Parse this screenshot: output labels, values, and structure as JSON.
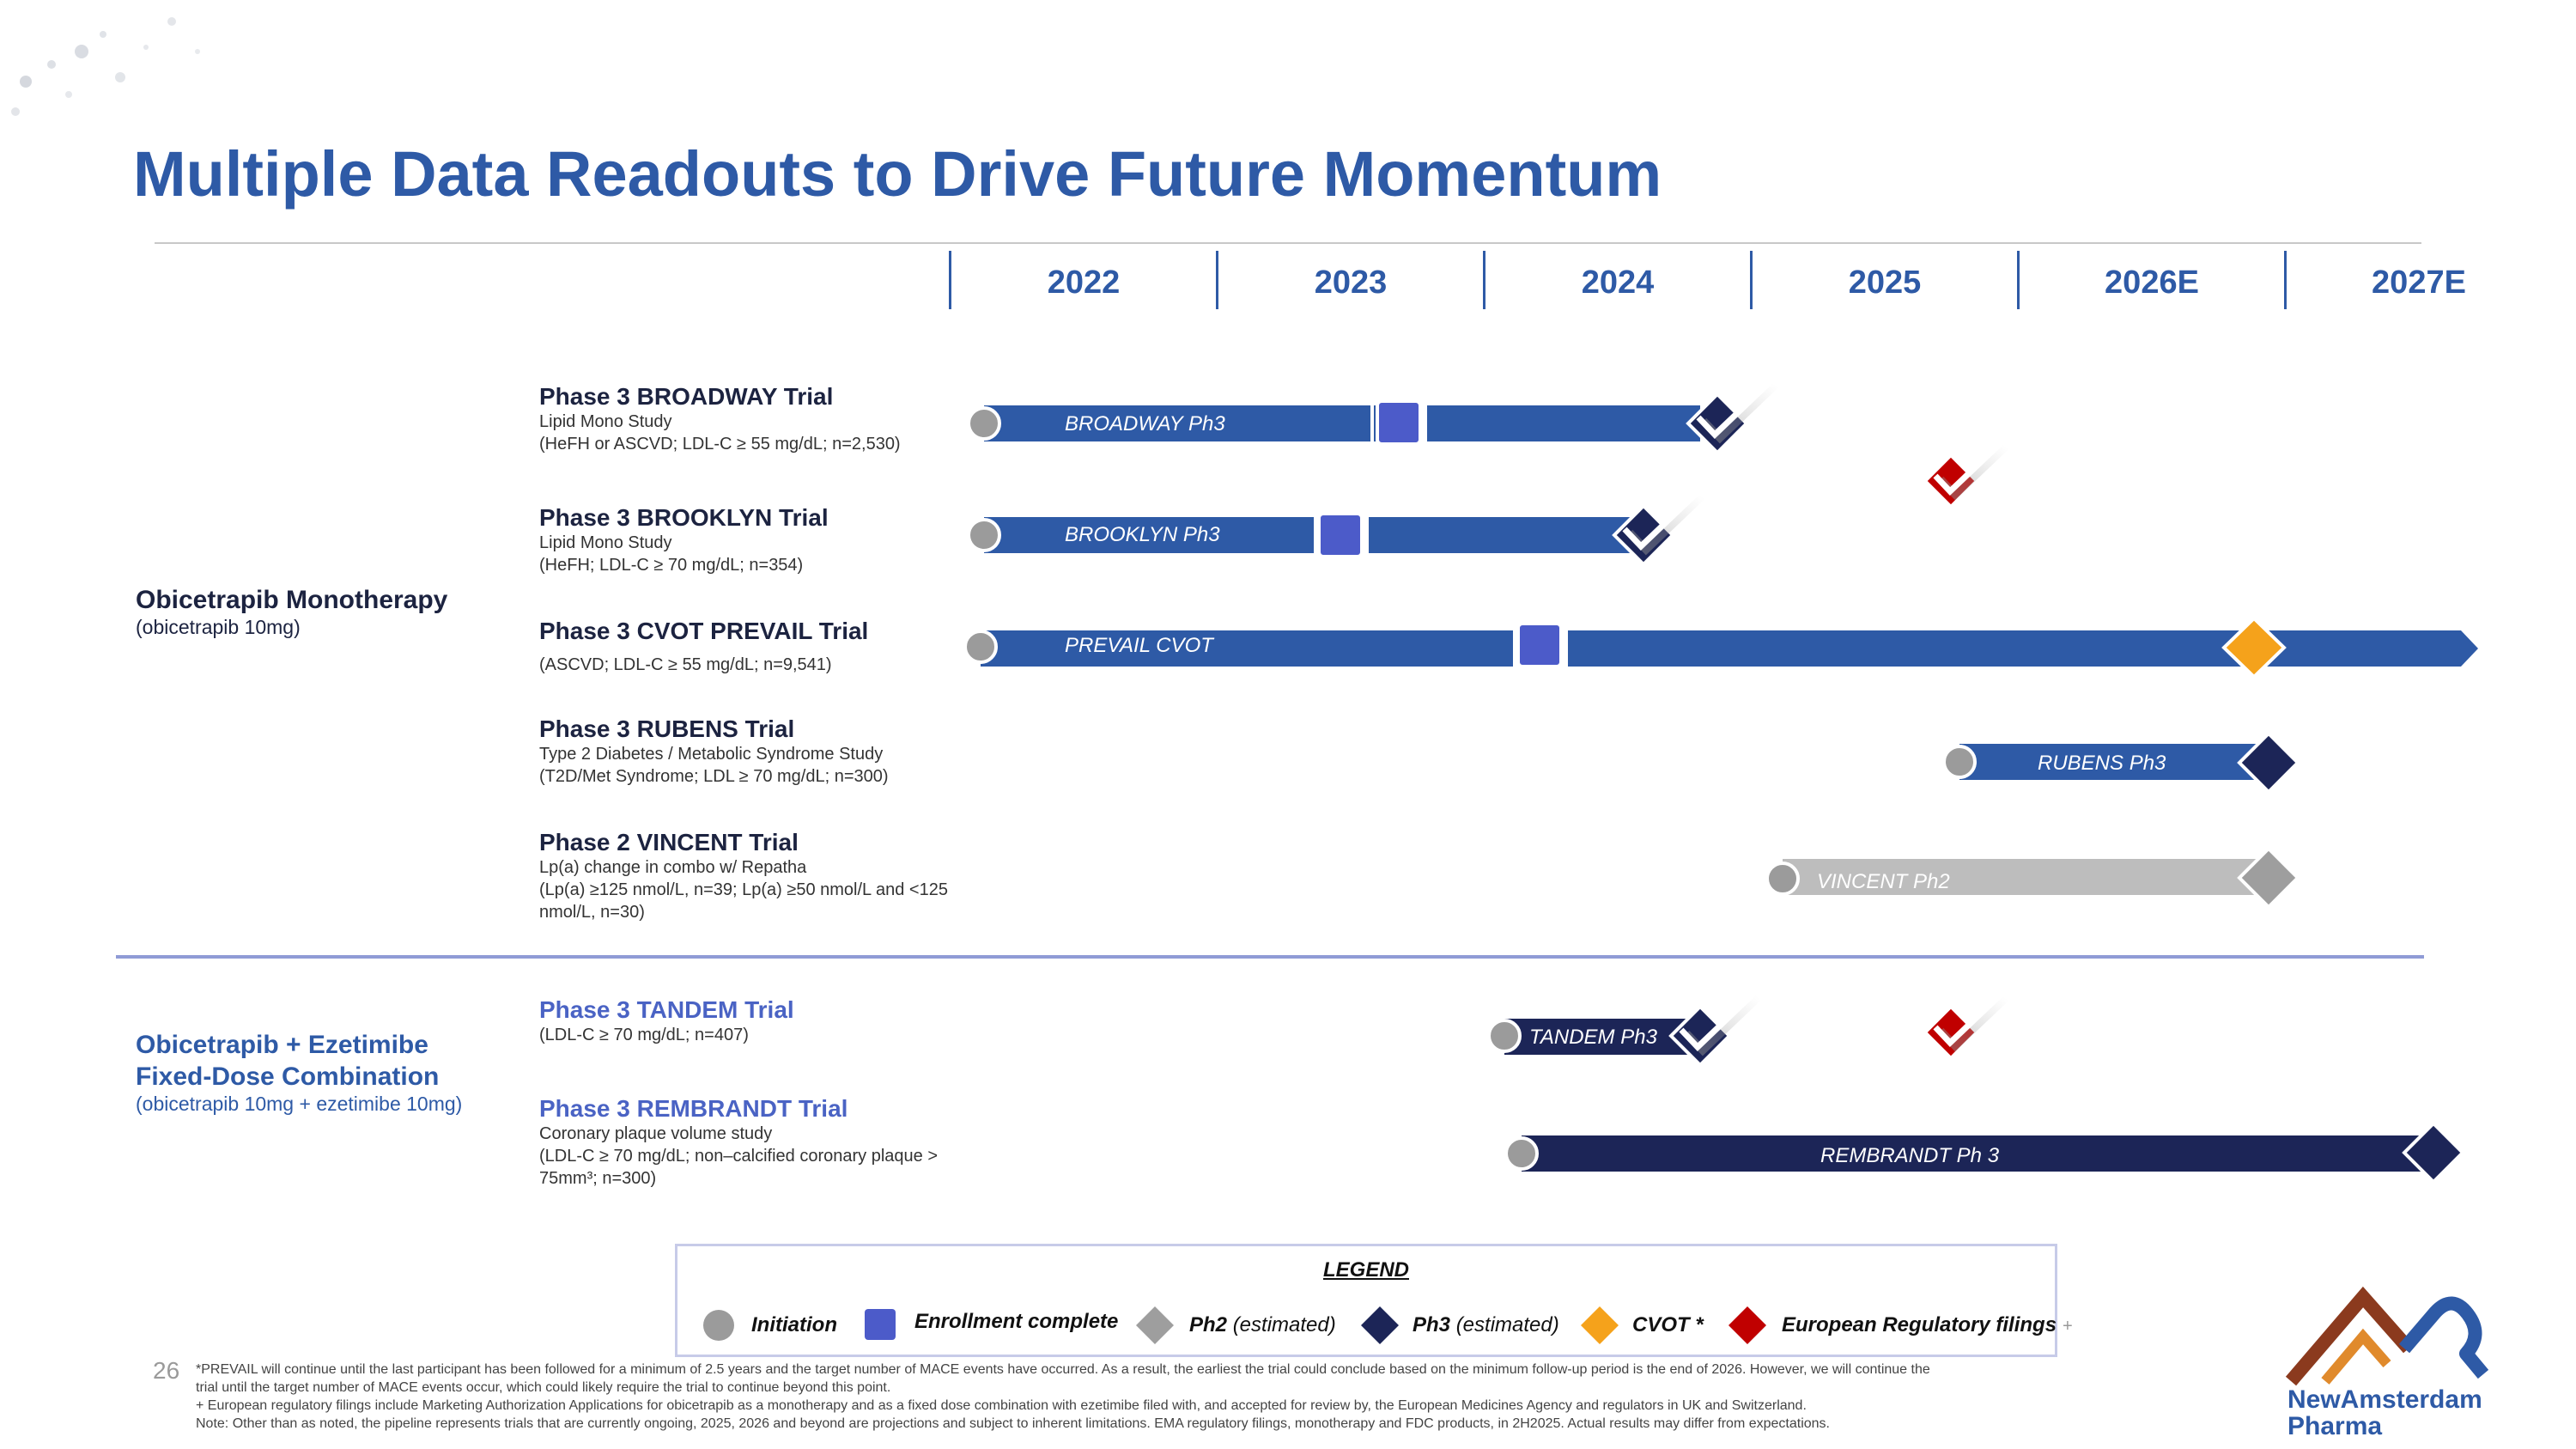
{
  "title": "Multiple Data Readouts to Drive Future Momentum",
  "timeline": {
    "years": [
      "2022",
      "2023",
      "2024",
      "2025",
      "2026E",
      "2027E"
    ]
  },
  "groups": {
    "monotherapy": {
      "title": "Obicetrapib Monotherapy",
      "subtitle": "(obicetrapib 10mg)"
    },
    "fdc": {
      "title_line1": "Obicetrapib + Ezetimibe",
      "title_line2": "Fixed-Dose Combination",
      "subtitle": "(obicetrapib 10mg + ezetimibe 10mg)"
    }
  },
  "trials": {
    "broadway": {
      "name": "Phase 3 BROADWAY Trial",
      "desc1": "Lipid Mono Study",
      "desc2": "(HeFH or ASCVD; LDL-C ≥ 55 mg/dL; n=2,530)",
      "bar_label": "BROADWAY Ph3"
    },
    "brooklyn": {
      "name": "Phase 3 BROOKLYN Trial",
      "desc1": "Lipid Mono Study",
      "desc2": "(HeFH; LDL-C ≥ 70 mg/dL; n=354)",
      "bar_label": "BROOKLYN Ph3"
    },
    "prevail": {
      "name": "Phase 3 CVOT PREVAIL Trial",
      "desc1": "(ASCVD; LDL-C ≥ 55 mg/dL; n=9,541)",
      "bar_label": "PREVAIL CVOT"
    },
    "rubens": {
      "name": "Phase 3 RUBENS Trial",
      "desc1": "Type 2 Diabetes / Metabolic Syndrome Study",
      "desc2": "(T2D/Met Syndrome; LDL ≥ 70 mg/dL; n=300)",
      "bar_label": "RUBENS Ph3"
    },
    "vincent": {
      "name": "Phase 2 VINCENT Trial",
      "desc1": "Lp(a) change in combo w/ Repatha",
      "desc2": "(Lp(a) ≥125 nmol/L, n=39; Lp(a) ≥50 nmol/L and <125 nmol/L, n=30)",
      "bar_label": "VINCENT Ph2"
    },
    "tandem": {
      "name": "Phase 3 TANDEM Trial",
      "desc1": "(LDL-C ≥ 70 mg/dL; n=407)",
      "bar_label": "TANDEM Ph3"
    },
    "rembrandt": {
      "name": "Phase 3 REMBRANDT Trial",
      "desc1": "Coronary plaque volume study",
      "desc2": "(LDL-C ≥ 70 mg/dL; non–calcified coronary plaque > 75mm³; n=300)",
      "bar_label": "REMBRANDT Ph 3"
    }
  },
  "legend": {
    "title": "LEGEND",
    "initiation": "Initiation",
    "enrollment": "Enrollment complete",
    "ph2": "Ph2",
    "ph3": "Ph3",
    "estimated": "(estimated)",
    "cvot": "CVOT *",
    "eu": "European Regulatory filings",
    "plus": "+"
  },
  "colors": {
    "brand_blue": "#2e5aa6",
    "bar_blue": "#2e5aa6",
    "navy": "#1c2557",
    "grey": "#9b9b9b",
    "enrollment": "#4c5bc9",
    "cvot": "#f5a21b",
    "eu_red": "#c00000",
    "logo_brown": "#8b3a1e"
  },
  "footnotes": {
    "line1": "*PREVAIL will continue until the last participant has been followed for a minimum of 2.5 years and the target number of MACE events have occurred.  As a result, the earliest the trial could conclude based on the minimum follow-up period is the end of 2026.  However, we will continue the",
    "line2": "trial until the target number of MACE events occur, which could likely require the trial to continue beyond this point.",
    "line3": "+ European regulatory filings include Marketing Authorization Applications for obicetrapib as a monotherapy and as a fixed dose combination with ezetimibe filed with, and accepted for review by, the European Medicines Agency and regulators in UK and Switzerland.",
    "line4": "Note: Other than as noted, the pipeline represents trials that are currently ongoing, 2025, 2026 and beyond are projections and subject to inherent limitations. EMA regulatory filings, monotherapy and FDC products,  in 2H2025. Actual results may differ from expectations."
  },
  "page_number": "26",
  "logo": {
    "line1": "NewAmsterdam",
    "line2": "Pharma"
  }
}
